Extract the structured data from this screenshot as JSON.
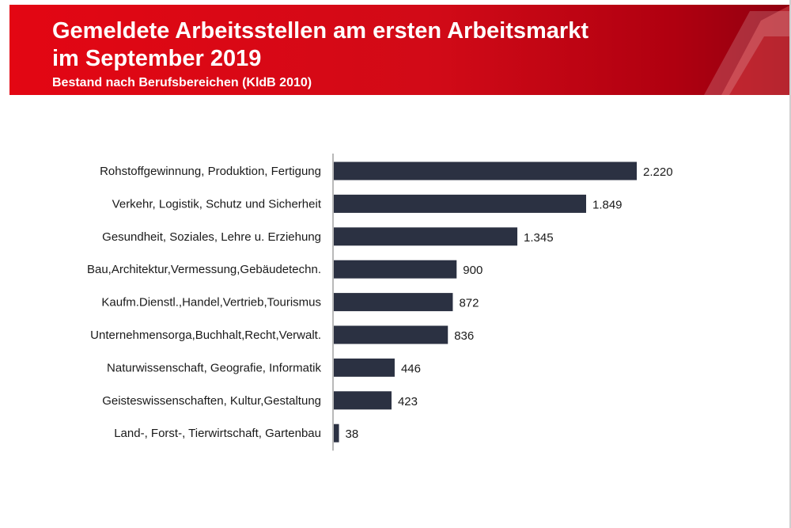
{
  "header": {
    "title_line1": "Gemeldete Arbeitsstellen am ersten Arbeitsmarkt",
    "title_line2": "im September 2019",
    "subtitle": "Bestand nach Berufsbereichen (KldB 2010)",
    "brand_color": "#e30613",
    "logo_icon": "ba-logo-icon"
  },
  "chart_data": {
    "type": "bar",
    "orientation": "horizontal",
    "title": "Gemeldete Arbeitsstellen am ersten Arbeitsmarkt im September 2019",
    "subtitle": "Bestand nach Berufsbereichen (KldB 2010)",
    "categories": [
      "Rohstoffgewinnung, Produktion, Fertigung",
      "Verkehr, Logistik, Schutz und Sicherheit",
      "Gesundheit, Soziales, Lehre u. Erziehung",
      "Bau,Architektur,Vermessung,Gebäudetechn.",
      "Kaufm.Dienstl.,Handel,Vertrieb,Tourismus",
      "Unternehmensorga,Buchhalt,Recht,Verwalt.",
      "Naturwissenschaft, Geografie, Informatik",
      "Geisteswissenschaften, Kultur,Gestaltung",
      "Land-, Forst-, Tierwirtschaft, Gartenbau"
    ],
    "values": [
      2220,
      1849,
      1345,
      900,
      872,
      836,
      446,
      423,
      38
    ],
    "value_labels": [
      "2.220",
      "1.849",
      "1.345",
      "900",
      "872",
      "836",
      "446",
      "423",
      "38"
    ],
    "xlim": [
      0,
      2220
    ],
    "xlabel": "",
    "ylabel": "",
    "grid": false,
    "bar_color": "#2b3142",
    "text_color": "#1a1a1a"
  }
}
